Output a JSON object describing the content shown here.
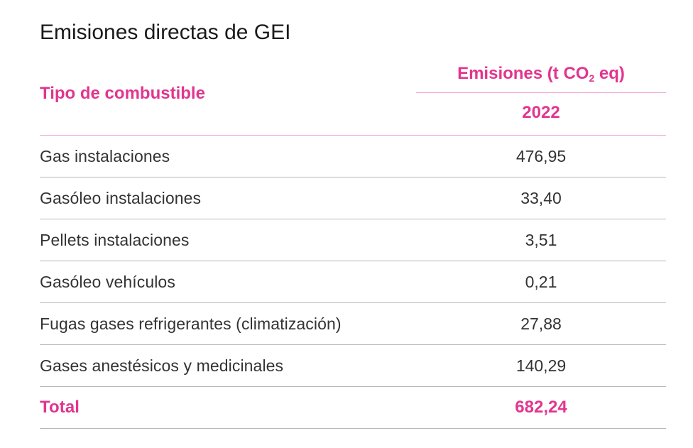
{
  "title": "Emisiones directas de GEI",
  "table": {
    "header": {
      "type_label": "Tipo de combustible",
      "emissions_label_pre": "Emisiones (t CO",
      "emissions_label_sub": "2",
      "emissions_label_post": " eq)",
      "year": "2022"
    },
    "rows": [
      {
        "label": "Gas instalaciones",
        "value": "476,95"
      },
      {
        "label": "Gasóleo instalaciones",
        "value": "33,40"
      },
      {
        "label": "Pellets instalaciones",
        "value": "3,51"
      },
      {
        "label": "Gasóleo vehículos",
        "value": "0,21"
      },
      {
        "label": "Fugas gases refrigerantes (climatización)",
        "value": "27,88"
      },
      {
        "label": "Gases anestésicos y medicinales",
        "value": "140,29"
      }
    ],
    "total": {
      "label": "Total",
      "value": "682,24"
    }
  },
  "colors": {
    "accent": "#e2358f",
    "rule_pink": "#f2a6d2",
    "rule_gray": "#b8b8b8",
    "text": "#333333"
  }
}
